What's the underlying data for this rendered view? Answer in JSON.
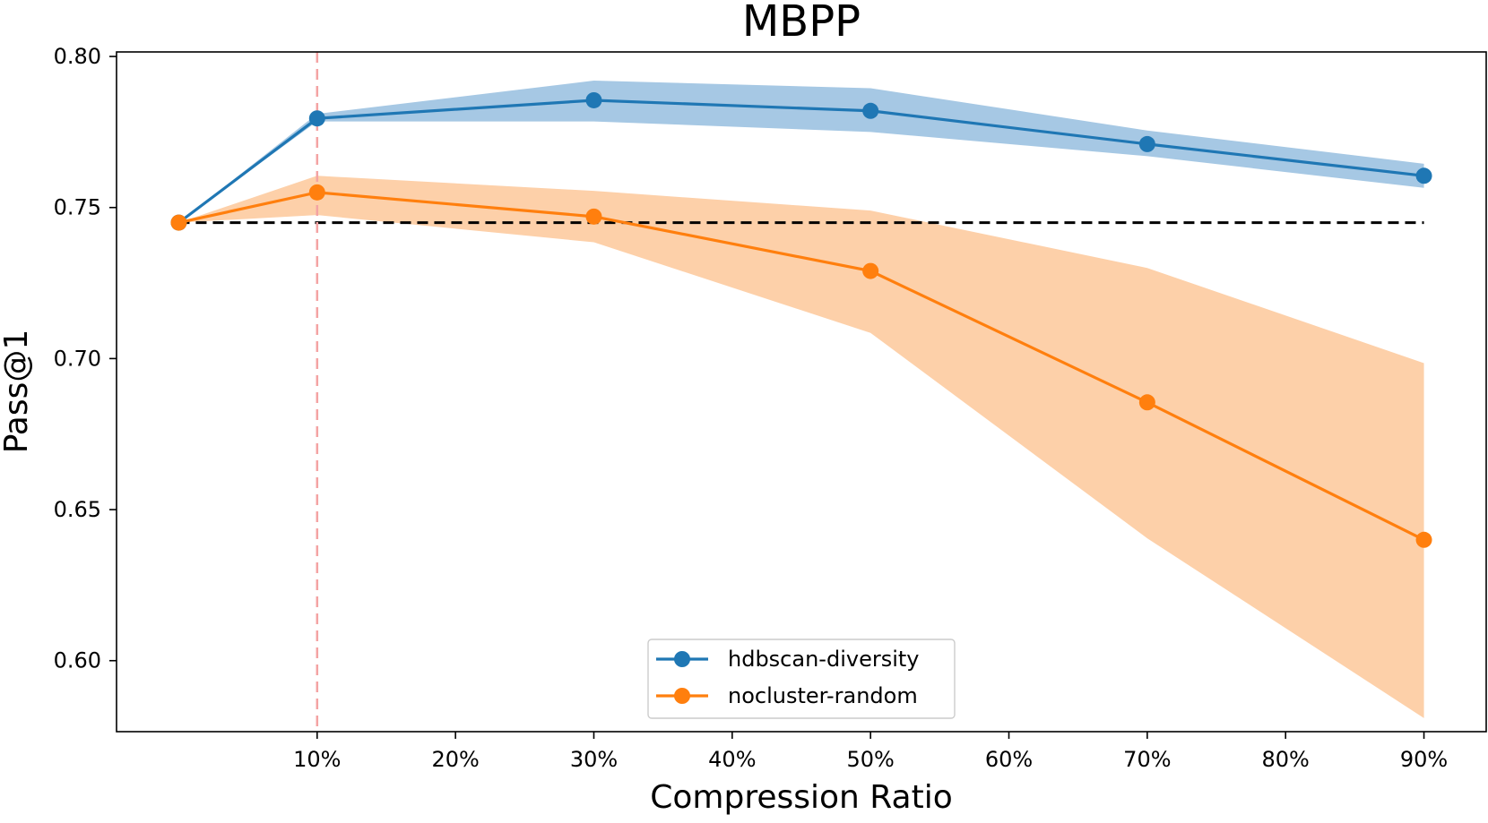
{
  "chart_data": {
    "type": "line",
    "title": "MBPP",
    "xlabel": "Compression Ratio",
    "ylabel": "Pass@1",
    "x": [
      0,
      10,
      30,
      50,
      70,
      90
    ],
    "xlim": [
      -4.5,
      94.5
    ],
    "ylim": [
      0.5765,
      0.8015
    ],
    "xticks": [
      10,
      20,
      30,
      40,
      50,
      60,
      70,
      80,
      90
    ],
    "xtick_labels": [
      "10%",
      "20%",
      "30%",
      "40%",
      "50%",
      "60%",
      "70%",
      "80%",
      "90%"
    ],
    "yticks": [
      0.6,
      0.65,
      0.7,
      0.75,
      0.8
    ],
    "ytick_labels": [
      "0.60",
      "0.65",
      "0.70",
      "0.75",
      "0.80"
    ],
    "grid": false,
    "legend_position": "bottom-center",
    "series": [
      {
        "name": "hdbscan-diversity",
        "color": "#1f77b4",
        "band_color": "#a6c8e4",
        "values": [
          0.745,
          0.7795,
          0.7855,
          0.782,
          0.771,
          0.7605
        ],
        "lower": [
          0.745,
          0.7785,
          0.7785,
          0.775,
          0.767,
          0.7565
        ],
        "upper": [
          0.745,
          0.781,
          0.792,
          0.7895,
          0.7755,
          0.7645
        ]
      },
      {
        "name": "nocluster-random",
        "color": "#ff7f0e",
        "band_color": "#fdd0a9",
        "values": [
          0.745,
          0.755,
          0.747,
          0.729,
          0.6855,
          0.64
        ],
        "lower": [
          0.745,
          0.7475,
          0.7385,
          0.7085,
          0.6405,
          0.581
        ],
        "upper": [
          0.745,
          0.7605,
          0.7555,
          0.749,
          0.73,
          0.6985
        ]
      }
    ],
    "reference_lines": [
      {
        "orientation": "horizontal",
        "y": 0.745,
        "x_from": 0,
        "x_to": 90,
        "color": "#000000",
        "style": "dashed"
      },
      {
        "orientation": "vertical",
        "x": 10,
        "color": "#f4a3a3",
        "style": "dashed"
      }
    ]
  }
}
